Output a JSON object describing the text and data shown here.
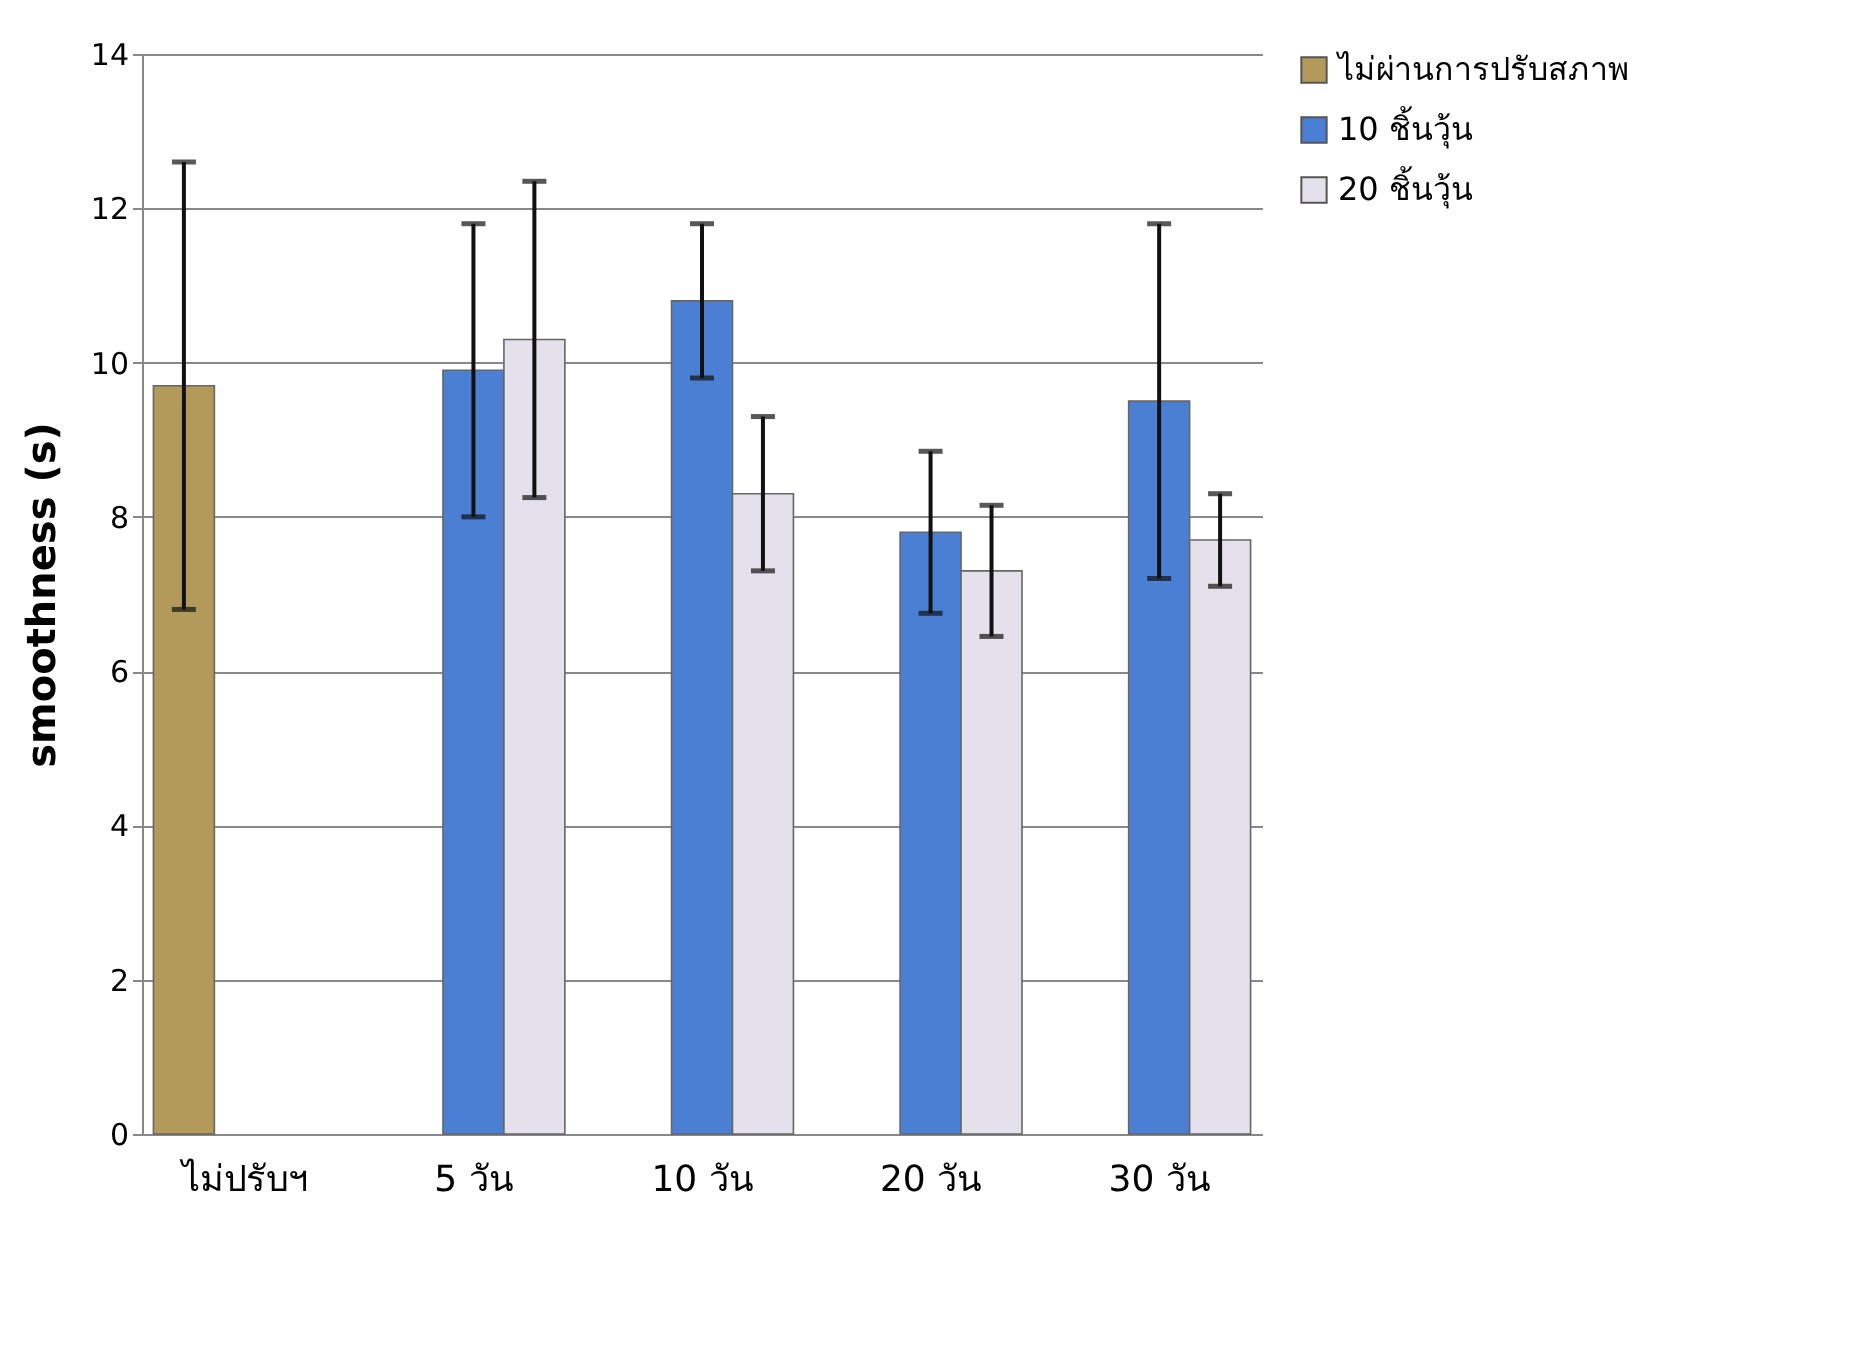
{
  "chart_data": {
    "type": "bar",
    "ylabel": "smoothness (s)",
    "categories": [
      "ไม่ปรับฯ",
      "5  วัน",
      "10  วัน",
      "20  วัน",
      "30  วัน"
    ],
    "series": [
      {
        "name": "ไม่ผ่านการปรับสภาพ",
        "color": "#b39a5a",
        "values": [
          9.7,
          null,
          null,
          null,
          null
        ],
        "errors": [
          2.9,
          null,
          null,
          null,
          null
        ]
      },
      {
        "name": "10  ชิ้นวุ้น",
        "color": "#4a7fd4",
        "values": [
          null,
          9.9,
          10.8,
          7.8,
          9.5
        ],
        "errors": [
          null,
          1.9,
          1.0,
          1.05,
          2.3
        ]
      },
      {
        "name": "20  ชิ้นวุ้น",
        "color": "#e4e0ec",
        "values": [
          null,
          10.3,
          8.3,
          7.3,
          7.7
        ],
        "errors": [
          null,
          2.05,
          1.0,
          0.85,
          0.6
        ]
      }
    ],
    "ylim": [
      0,
      14
    ],
    "yticks": [
      0,
      2,
      4,
      6,
      8,
      10,
      12,
      14
    ],
    "grid": "y",
    "legend": "right"
  }
}
